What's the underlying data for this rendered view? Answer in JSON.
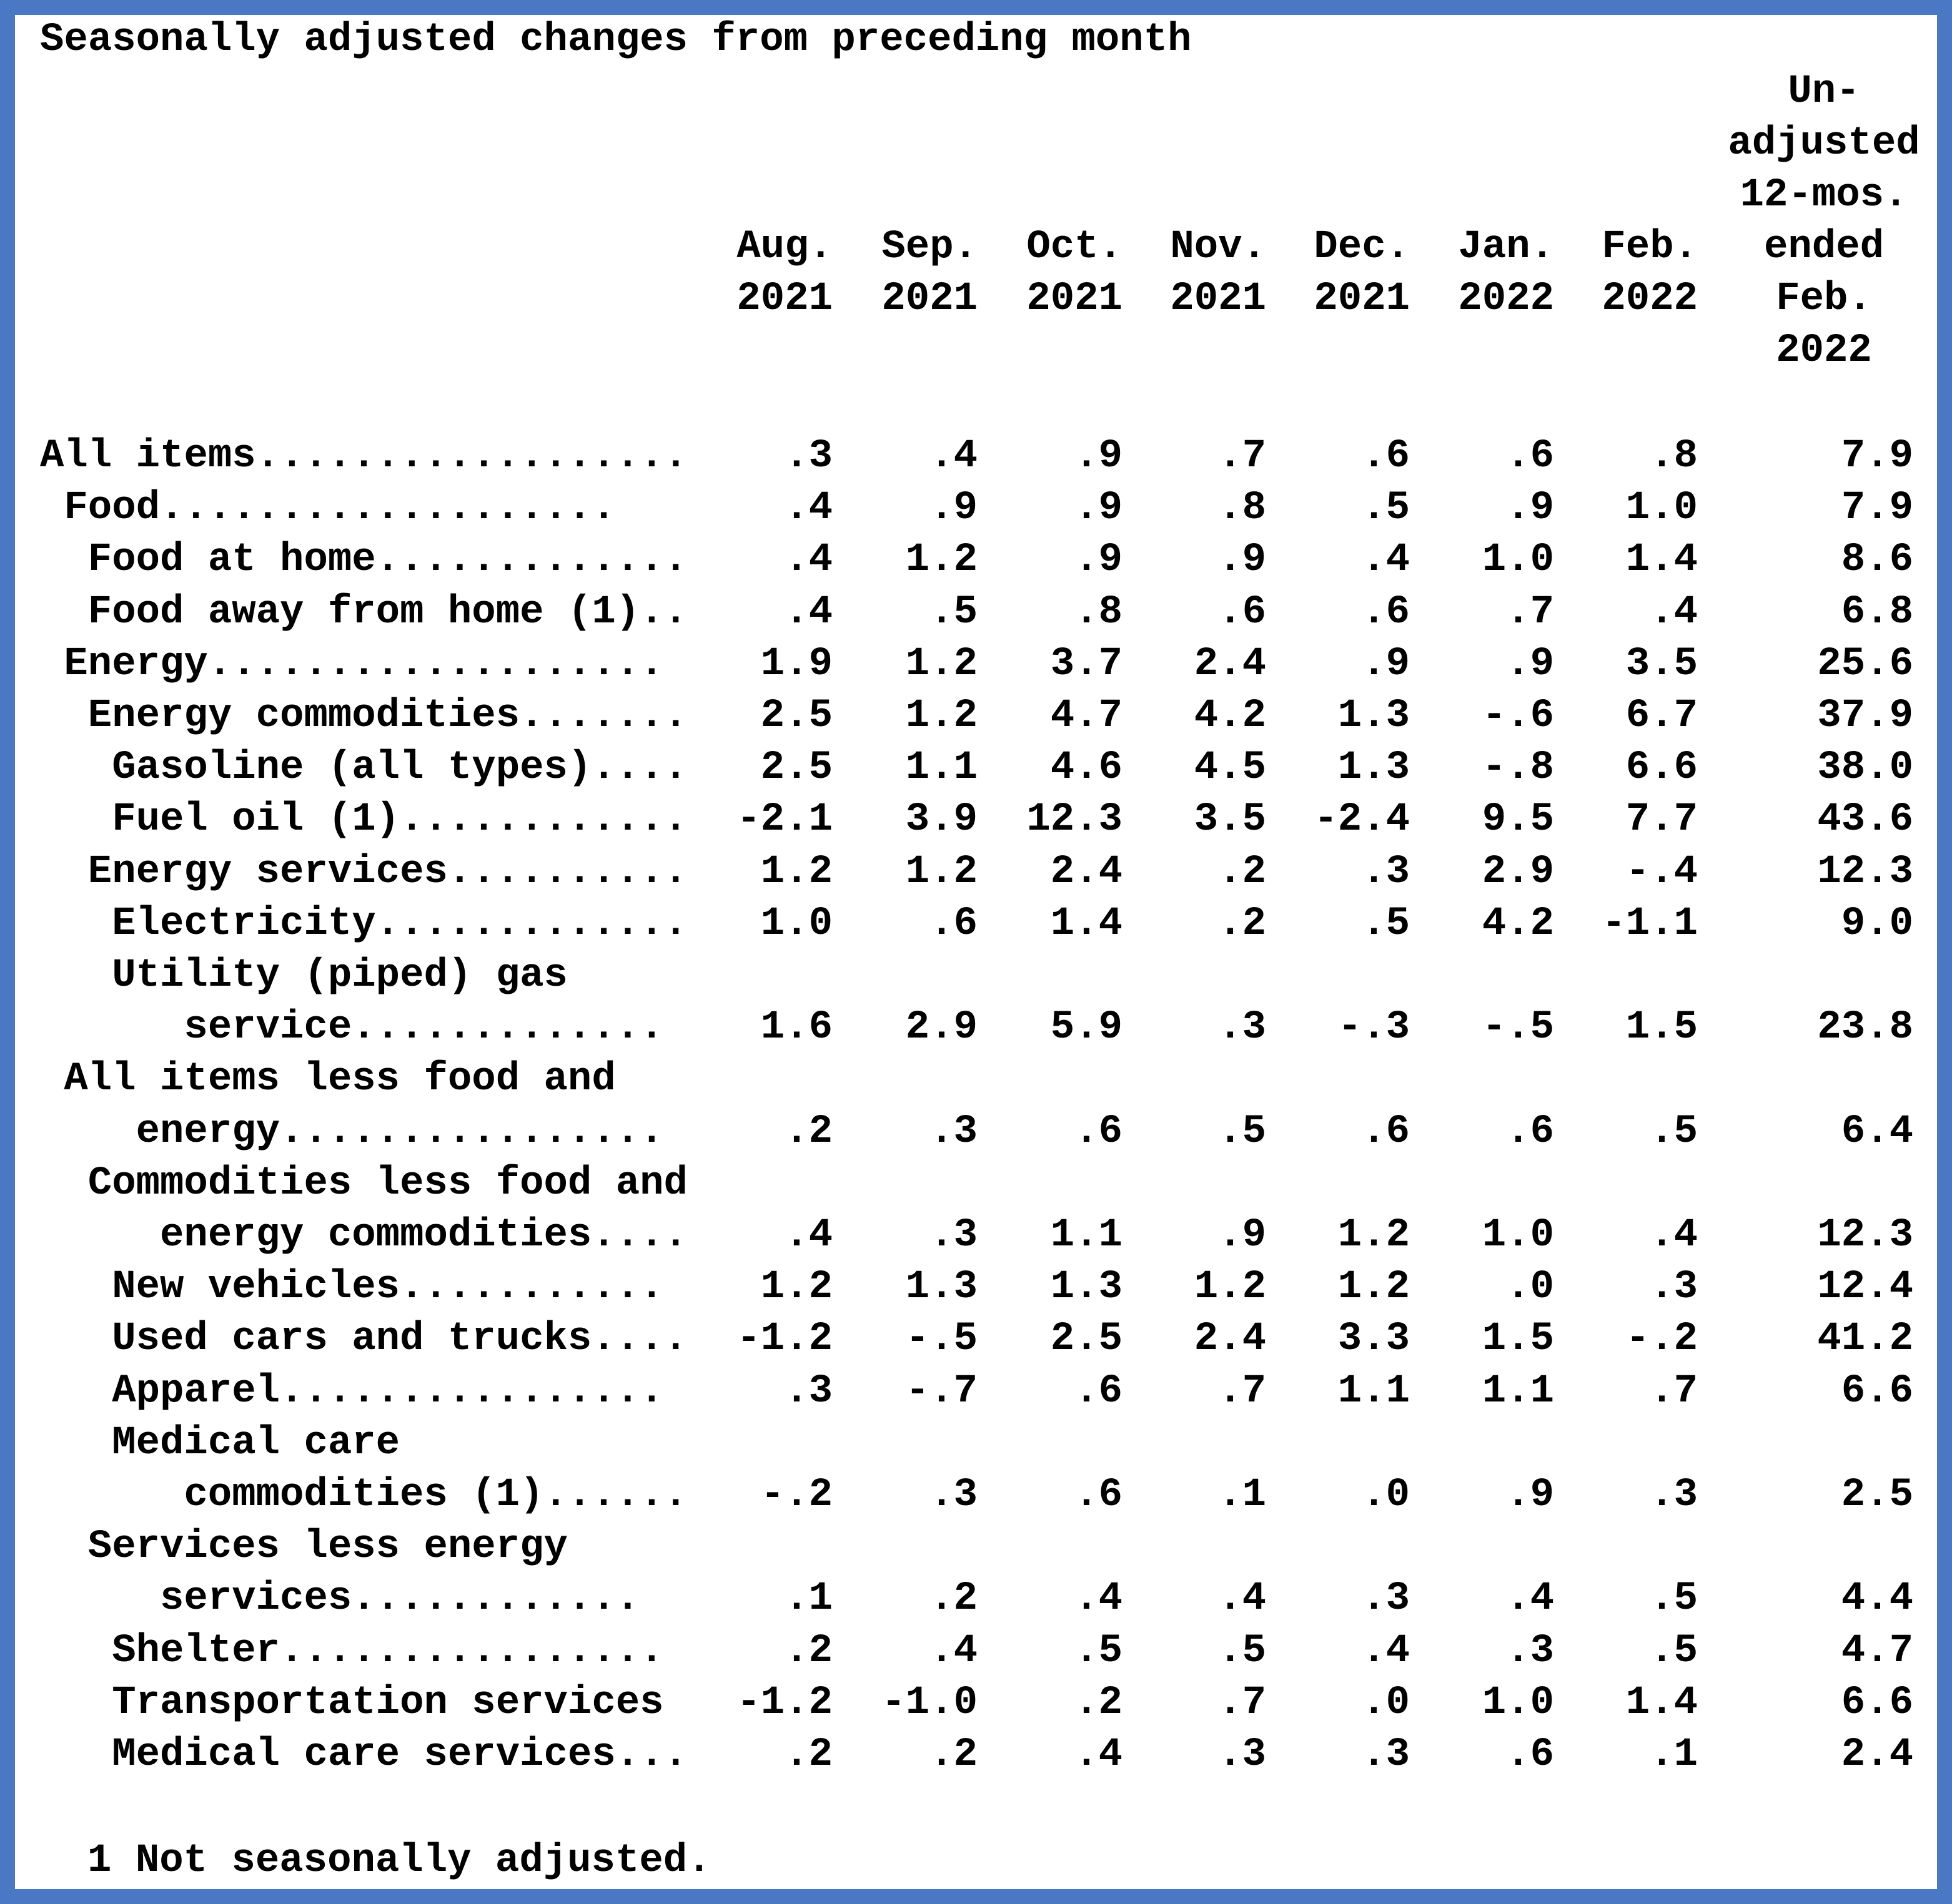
{
  "title": "Seasonally adjusted changes from preceding month",
  "columns": [
    {
      "line1": "Aug.",
      "line2": "2021"
    },
    {
      "line1": "Sep.",
      "line2": "2021"
    },
    {
      "line1": "Oct.",
      "line2": "2021"
    },
    {
      "line1": "Nov.",
      "line2": "2021"
    },
    {
      "line1": "Dec.",
      "line2": "2021"
    },
    {
      "line1": "Jan.",
      "line2": "2022"
    },
    {
      "line1": "Feb.",
      "line2": "2022"
    }
  ],
  "unadjusted_header": [
    "Un-",
    "adjusted",
    "12-mos.",
    "ended",
    "Feb.",
    "2022"
  ],
  "rows": [
    {
      "label": "All items..................",
      "indent": 0,
      "values": [
        ".3",
        ".4",
        ".9",
        ".7",
        ".6",
        ".6",
        ".8",
        "7.9"
      ]
    },
    {
      "label": "Food...................",
      "indent": 1,
      "values": [
        ".4",
        ".9",
        ".9",
        ".8",
        ".5",
        ".9",
        "1.0",
        "7.9"
      ]
    },
    {
      "label": "Food at home.............",
      "indent": 2,
      "values": [
        ".4",
        "1.2",
        ".9",
        ".9",
        ".4",
        "1.0",
        "1.4",
        "8.6"
      ]
    },
    {
      "label": "Food away from home (1)..",
      "indent": 2,
      "values": [
        ".4",
        ".5",
        ".8",
        ".6",
        ".6",
        ".7",
        ".4",
        "6.8"
      ]
    },
    {
      "label": "Energy...................",
      "indent": 1,
      "values": [
        "1.9",
        "1.2",
        "3.7",
        "2.4",
        ".9",
        ".9",
        "3.5",
        "25.6"
      ]
    },
    {
      "label": "Energy commodities.......",
      "indent": 2,
      "values": [
        "2.5",
        "1.2",
        "4.7",
        "4.2",
        "1.3",
        "-.6",
        "6.7",
        "37.9"
      ]
    },
    {
      "label": "Gasoline (all types)....",
      "indent": 3,
      "values": [
        "2.5",
        "1.1",
        "4.6",
        "4.5",
        "1.3",
        "-.8",
        "6.6",
        "38.0"
      ]
    },
    {
      "label": "Fuel oil (1)............",
      "indent": 3,
      "values": [
        "-2.1",
        "3.9",
        "12.3",
        "3.5",
        "-2.4",
        "9.5",
        "7.7",
        "43.6"
      ]
    },
    {
      "label": "Energy services..........",
      "indent": 2,
      "values": [
        "1.2",
        "1.2",
        "2.4",
        ".2",
        ".3",
        "2.9",
        "-.4",
        "12.3"
      ]
    },
    {
      "label": "Electricity.............",
      "indent": 3,
      "values": [
        "1.0",
        ".6",
        "1.4",
        ".2",
        ".5",
        "4.2",
        "-1.1",
        "9.0"
      ]
    },
    {
      "label": "Utility (piped) gas",
      "indent": 3,
      "values": []
    },
    {
      "label": "service.............",
      "indent": 6,
      "values": [
        "1.6",
        "2.9",
        "5.9",
        ".3",
        "-.3",
        "-.5",
        "1.5",
        "23.8"
      ]
    },
    {
      "label": "All items less food and",
      "indent": 1,
      "values": []
    },
    {
      "label": "energy................",
      "indent": 4,
      "values": [
        ".2",
        ".3",
        ".6",
        ".5",
        ".6",
        ".6",
        ".5",
        "6.4"
      ]
    },
    {
      "label": "Commodities less food and",
      "indent": 2,
      "values": []
    },
    {
      "label": "energy commodities....",
      "indent": 5,
      "values": [
        ".4",
        ".3",
        "1.1",
        ".9",
        "1.2",
        "1.0",
        ".4",
        "12.3"
      ]
    },
    {
      "label": "New vehicles...........",
      "indent": 3,
      "values": [
        "1.2",
        "1.3",
        "1.3",
        "1.2",
        "1.2",
        ".0",
        ".3",
        "12.4"
      ]
    },
    {
      "label": "Used cars and trucks....",
      "indent": 3,
      "values": [
        "-1.2",
        "-.5",
        "2.5",
        "2.4",
        "3.3",
        "1.5",
        "-.2",
        "41.2"
      ]
    },
    {
      "label": "Apparel................",
      "indent": 3,
      "values": [
        ".3",
        "-.7",
        ".6",
        ".7",
        "1.1",
        "1.1",
        ".7",
        "6.6"
      ]
    },
    {
      "label": "Medical care",
      "indent": 3,
      "values": []
    },
    {
      "label": "commodities (1)......",
      "indent": 6,
      "values": [
        "-.2",
        ".3",
        ".6",
        ".1",
        ".0",
        ".9",
        ".3",
        "2.5"
      ]
    },
    {
      "label": "Services less energy",
      "indent": 2,
      "values": []
    },
    {
      "label": "services............",
      "indent": 5,
      "values": [
        ".1",
        ".2",
        ".4",
        ".4",
        ".3",
        ".4",
        ".5",
        "4.4"
      ]
    },
    {
      "label": "Shelter................",
      "indent": 3,
      "values": [
        ".2",
        ".4",
        ".5",
        ".5",
        ".4",
        ".3",
        ".5",
        "4.7"
      ]
    },
    {
      "label": "Transportation services",
      "indent": 3,
      "values": [
        "-1.2",
        "-1.0",
        ".2",
        ".7",
        ".0",
        "1.0",
        "1.4",
        "6.6"
      ]
    },
    {
      "label": "Medical care services...",
      "indent": 3,
      "values": [
        ".2",
        ".2",
        ".4",
        ".3",
        ".3",
        ".6",
        ".1",
        "2.4"
      ]
    }
  ],
  "footnote": "1 Not seasonally adjusted."
}
